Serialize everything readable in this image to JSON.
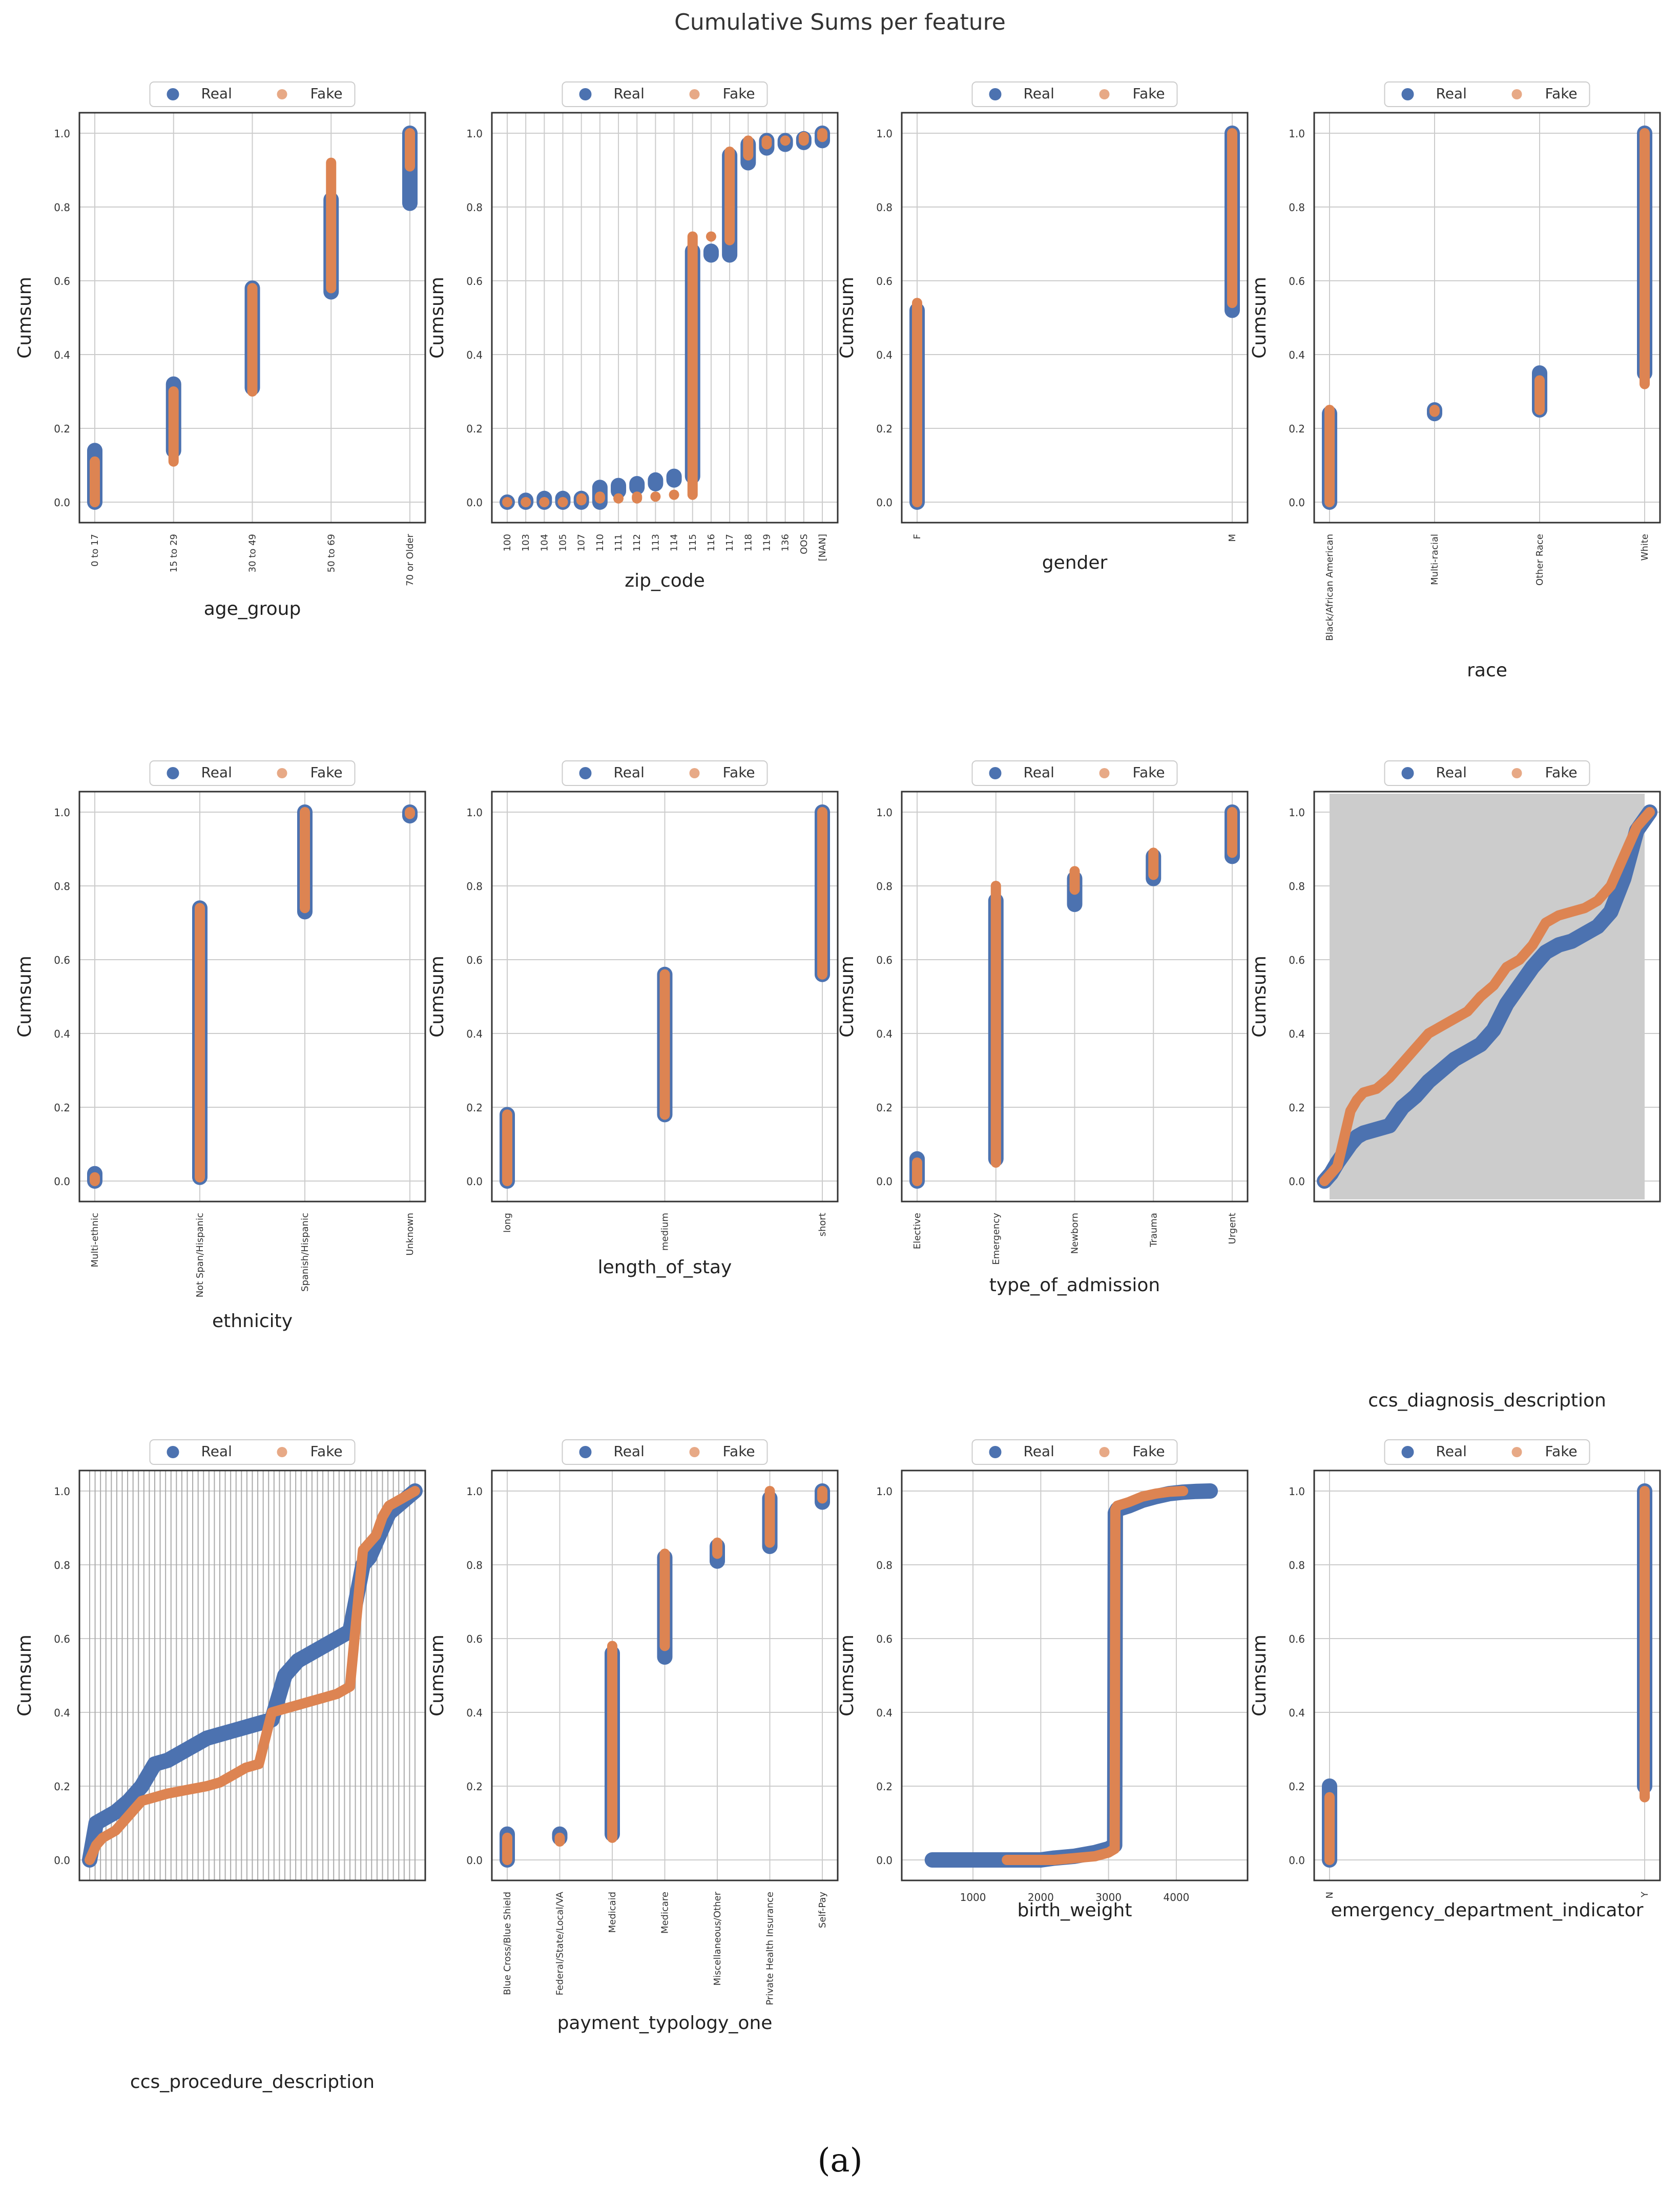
{
  "title": "Cumulative Sums per feature",
  "caption": "(a)",
  "legend_labels": [
    "Real",
    "Fake"
  ],
  "colors": {
    "real": "#4c72b0",
    "fake": "#dd8452",
    "grid": "#cccccc",
    "axis": "#333333",
    "shaded_bg": "#cccccc"
  },
  "chart_data": [
    {
      "type": "scatter",
      "xlabel": "age_group",
      "ylabel": "Cumsum",
      "ylim": [
        0,
        1
      ],
      "yticks": [
        "0.0",
        "0.2",
        "0.4",
        "0.6",
        "0.8",
        "1.0"
      ],
      "grid": true,
      "legend": "top-center",
      "categories": [
        "0 to 17",
        "15 to 29",
        "30 to 49",
        "50 to 69",
        "70 or Older"
      ],
      "series": [
        {
          "name": "Real",
          "ranges": [
            [
              0.0,
              0.14
            ],
            [
              0.14,
              0.32
            ],
            [
              0.31,
              0.58
            ],
            [
              0.57,
              0.82
            ],
            [
              0.81,
              1.0
            ]
          ]
        },
        {
          "name": "Fake",
          "ranges": [
            [
              0.0,
              0.11
            ],
            [
              0.11,
              0.3
            ],
            [
              0.3,
              0.58
            ],
            [
              0.58,
              0.92
            ],
            [
              0.91,
              1.0
            ]
          ]
        }
      ]
    },
    {
      "type": "scatter",
      "xlabel": "zip_code",
      "ylabel": "Cumsum",
      "ylim": [
        0,
        1
      ],
      "yticks": [
        "0.0",
        "0.2",
        "0.4",
        "0.6",
        "0.8",
        "1.0"
      ],
      "grid": true,
      "legend": "top-center",
      "categories": [
        "100",
        "103",
        "104",
        "105",
        "107",
        "110",
        "111",
        "112",
        "113",
        "114",
        "115",
        "116",
        "117",
        "118",
        "119",
        "136",
        "OOS",
        "[NAN]"
      ],
      "series": [
        {
          "name": "Real",
          "ranges": [
            [
              0.0,
              0.0
            ],
            [
              0.0,
              0.005
            ],
            [
              0.0,
              0.01
            ],
            [
              0.0,
              0.01
            ],
            [
              0.0,
              0.01
            ],
            [
              0.0,
              0.04
            ],
            [
              0.03,
              0.045
            ],
            [
              0.04,
              0.05
            ],
            [
              0.05,
              0.06
            ],
            [
              0.06,
              0.07
            ],
            [
              0.07,
              0.68
            ],
            [
              0.67,
              0.68
            ],
            [
              0.67,
              0.94
            ],
            [
              0.92,
              0.97
            ],
            [
              0.96,
              0.98
            ],
            [
              0.97,
              0.98
            ],
            [
              0.975,
              0.985
            ],
            [
              0.98,
              1.0
            ]
          ]
        },
        {
          "name": "Fake",
          "ranges": [
            [
              0.0,
              0.0
            ],
            [
              0.0,
              0.0
            ],
            [
              0.0,
              0.0
            ],
            [
              0.0,
              0.0
            ],
            [
              0.005,
              0.01
            ],
            [
              0.01,
              0.015
            ],
            [
              0.01,
              0.01
            ],
            [
              0.01,
              0.015
            ],
            [
              0.015,
              0.015
            ],
            [
              0.02,
              0.02
            ],
            [
              0.02,
              0.72
            ],
            [
              0.72,
              0.72
            ],
            [
              0.71,
              0.95
            ],
            [
              0.94,
              0.98
            ],
            [
              0.97,
              0.98
            ],
            [
              0.98,
              0.98
            ],
            [
              0.98,
              0.99
            ],
            [
              0.99,
              1.0
            ]
          ]
        }
      ]
    },
    {
      "type": "scatter",
      "xlabel": "gender",
      "ylabel": "Cumsum",
      "ylim": [
        0,
        1
      ],
      "yticks": [
        "0.0",
        "0.2",
        "0.4",
        "0.6",
        "0.8",
        "1.0"
      ],
      "grid": true,
      "legend": "top-center",
      "categories": [
        "F",
        "M"
      ],
      "series": [
        {
          "name": "Real",
          "ranges": [
            [
              0.0,
              0.52
            ],
            [
              0.52,
              1.0
            ]
          ]
        },
        {
          "name": "Fake",
          "ranges": [
            [
              0.0,
              0.54
            ],
            [
              0.54,
              1.0
            ]
          ]
        }
      ]
    },
    {
      "type": "scatter",
      "xlabel": "race",
      "ylabel": "Cumsum",
      "ylim": [
        0,
        1
      ],
      "yticks": [
        "0.0",
        "0.2",
        "0.4",
        "0.6",
        "0.8",
        "1.0"
      ],
      "grid": true,
      "legend": "top-center",
      "categories": [
        "Black/African American",
        "Multi-racial",
        "Other Race",
        "White"
      ],
      "series": [
        {
          "name": "Real",
          "ranges": [
            [
              0.0,
              0.24
            ],
            [
              0.24,
              0.25
            ],
            [
              0.25,
              0.35
            ],
            [
              0.35,
              1.0
            ]
          ]
        },
        {
          "name": "Fake",
          "ranges": [
            [
              0.0,
              0.25
            ],
            [
              0.245,
              0.25
            ],
            [
              0.25,
              0.33
            ],
            [
              0.32,
              1.0
            ]
          ]
        }
      ]
    },
    {
      "type": "scatter",
      "xlabel": "ethnicity",
      "ylabel": "Cumsum",
      "ylim": [
        0,
        1
      ],
      "yticks": [
        "0.0",
        "0.2",
        "0.4",
        "0.6",
        "0.8",
        "1.0"
      ],
      "grid": true,
      "legend": "top-center",
      "categories": [
        "Multi-ethnic",
        "Not Span/Hispanic",
        "Spanish/Hispanic",
        "Unknown"
      ],
      "series": [
        {
          "name": "Real",
          "ranges": [
            [
              0.0,
              0.02
            ],
            [
              0.01,
              0.74
            ],
            [
              0.73,
              1.0
            ],
            [
              0.99,
              1.0
            ]
          ]
        },
        {
          "name": "Fake",
          "ranges": [
            [
              0.0,
              0.01
            ],
            [
              0.01,
              0.74
            ],
            [
              0.74,
              1.0
            ],
            [
              0.995,
              1.0
            ]
          ]
        }
      ]
    },
    {
      "type": "scatter",
      "xlabel": "length_of_stay",
      "ylabel": "Cumsum",
      "ylim": [
        0,
        1
      ],
      "yticks": [
        "0.0",
        "0.2",
        "0.4",
        "0.6",
        "0.8",
        "1.0"
      ],
      "grid": true,
      "legend": "top-center",
      "categories": [
        "long",
        "medium",
        "short"
      ],
      "series": [
        {
          "name": "Real",
          "ranges": [
            [
              0.0,
              0.18
            ],
            [
              0.18,
              0.56
            ],
            [
              0.56,
              1.0
            ]
          ]
        },
        {
          "name": "Fake",
          "ranges": [
            [
              0.0,
              0.18
            ],
            [
              0.18,
              0.56
            ],
            [
              0.56,
              1.0
            ]
          ]
        }
      ]
    },
    {
      "type": "scatter",
      "xlabel": "type_of_admission",
      "ylabel": "Cumsum",
      "ylim": [
        0,
        1
      ],
      "yticks": [
        "0.0",
        "0.2",
        "0.4",
        "0.6",
        "0.8",
        "1.0"
      ],
      "grid": true,
      "legend": "top-center",
      "categories": [
        "Elective",
        "Emergency",
        "Newborn",
        "Trauma",
        "Urgent"
      ],
      "series": [
        {
          "name": "Real",
          "ranges": [
            [
              0.0,
              0.06
            ],
            [
              0.06,
              0.76
            ],
            [
              0.75,
              0.82
            ],
            [
              0.82,
              0.88
            ],
            [
              0.88,
              1.0
            ]
          ]
        },
        {
          "name": "Fake",
          "ranges": [
            [
              0.0,
              0.05
            ],
            [
              0.05,
              0.8
            ],
            [
              0.79,
              0.84
            ],
            [
              0.83,
              0.89
            ],
            [
              0.89,
              1.0
            ]
          ]
        }
      ]
    },
    {
      "type": "line",
      "xlabel": "ccs_diagnosis_description",
      "ylabel": "Cumsum",
      "ylim": [
        0,
        1
      ],
      "yticks": [
        "0.0",
        "0.2",
        "0.4",
        "0.6",
        "0.8",
        "1.0"
      ],
      "grid": true,
      "shaded_background": true,
      "legend": "top-center",
      "x": [
        0,
        2,
        4,
        8,
        10,
        12,
        16,
        20,
        24,
        28,
        32,
        36,
        40,
        44,
        48,
        52,
        56,
        60,
        64,
        68,
        72,
        76,
        80,
        84,
        88,
        92,
        96,
        100
      ],
      "series": [
        {
          "name": "Real",
          "values": [
            0.0,
            0.02,
            0.05,
            0.1,
            0.12,
            0.13,
            0.14,
            0.15,
            0.2,
            0.23,
            0.27,
            0.3,
            0.33,
            0.35,
            0.37,
            0.41,
            0.48,
            0.53,
            0.58,
            0.62,
            0.64,
            0.65,
            0.67,
            0.69,
            0.73,
            0.82,
            0.95,
            1.0
          ]
        },
        {
          "name": "Fake",
          "values": [
            0.0,
            0.02,
            0.04,
            0.19,
            0.22,
            0.24,
            0.25,
            0.28,
            0.32,
            0.36,
            0.4,
            0.42,
            0.44,
            0.46,
            0.5,
            0.53,
            0.58,
            0.6,
            0.64,
            0.7,
            0.72,
            0.73,
            0.74,
            0.76,
            0.8,
            0.88,
            0.96,
            1.0
          ]
        }
      ]
    },
    {
      "type": "line",
      "xlabel": "ccs_procedure_description",
      "ylabel": "Cumsum",
      "ylim": [
        0,
        1
      ],
      "yticks": [
        "0.0",
        "0.2",
        "0.4",
        "0.6",
        "0.8",
        "1.0"
      ],
      "grid": true,
      "dense_vertical_grid": true,
      "legend": "top-center",
      "x": [
        0,
        2,
        4,
        8,
        12,
        16,
        20,
        24,
        30,
        36,
        40,
        44,
        48,
        52,
        56,
        60,
        64,
        68,
        72,
        76,
        80,
        84,
        86,
        88,
        90,
        92,
        96,
        100
      ],
      "series": [
        {
          "name": "Real",
          "values": [
            0.0,
            0.1,
            0.11,
            0.13,
            0.16,
            0.2,
            0.26,
            0.27,
            0.3,
            0.33,
            0.34,
            0.35,
            0.36,
            0.37,
            0.38,
            0.5,
            0.54,
            0.56,
            0.58,
            0.6,
            0.62,
            0.8,
            0.82,
            0.86,
            0.9,
            0.94,
            0.97,
            1.0
          ]
        },
        {
          "name": "Fake",
          "values": [
            0.0,
            0.04,
            0.06,
            0.08,
            0.12,
            0.16,
            0.17,
            0.18,
            0.19,
            0.2,
            0.21,
            0.23,
            0.25,
            0.26,
            0.4,
            0.41,
            0.42,
            0.43,
            0.44,
            0.45,
            0.47,
            0.84,
            0.86,
            0.88,
            0.93,
            0.96,
            0.98,
            1.0
          ]
        }
      ]
    },
    {
      "type": "scatter",
      "xlabel": "payment_typology_one",
      "ylabel": "Cumsum",
      "ylim": [
        0,
        1
      ],
      "yticks": [
        "0.0",
        "0.2",
        "0.4",
        "0.6",
        "0.8",
        "1.0"
      ],
      "grid": true,
      "legend": "top-center",
      "categories": [
        "Blue Cross/Blue Shield",
        "Federal/State/Local/VA",
        "Medicaid",
        "Medicare",
        "Miscellaneous/Other",
        "Private Health Insurance",
        "Self-Pay"
      ],
      "series": [
        {
          "name": "Real",
          "ranges": [
            [
              0.0,
              0.07
            ],
            [
              0.06,
              0.07
            ],
            [
              0.07,
              0.56
            ],
            [
              0.55,
              0.82
            ],
            [
              0.81,
              0.85
            ],
            [
              0.85,
              0.98
            ],
            [
              0.97,
              1.0
            ]
          ]
        },
        {
          "name": "Fake",
          "ranges": [
            [
              0.0,
              0.06
            ],
            [
              0.05,
              0.06
            ],
            [
              0.06,
              0.58
            ],
            [
              0.58,
              0.83
            ],
            [
              0.83,
              0.86
            ],
            [
              0.86,
              1.0
            ],
            [
              0.98,
              1.0
            ]
          ]
        }
      ]
    },
    {
      "type": "line",
      "xlabel": "birth_weight",
      "ylabel": "Cumsum",
      "ylim": [
        0,
        1
      ],
      "xlim": [
        100,
        4900
      ],
      "xticks": [
        "1000",
        "2000",
        "3000",
        "4000"
      ],
      "yticks": [
        "0.0",
        "0.2",
        "0.4",
        "0.6",
        "0.8",
        "1.0"
      ],
      "grid": true,
      "legend": "top-center",
      "x": [
        400,
        900,
        1500,
        1800,
        2000,
        2200,
        2500,
        2800,
        3000,
        3090,
        3100,
        3130,
        3300,
        3500,
        3700,
        3900,
        4100,
        4300,
        4500
      ],
      "series": [
        {
          "name": "Real",
          "values": [
            0.0,
            0.0,
            0.0,
            0.0,
            0.0,
            0.005,
            0.01,
            0.02,
            0.03,
            0.04,
            0.94,
            0.95,
            0.96,
            0.975,
            0.985,
            0.993,
            0.997,
            0.999,
            1.0
          ]
        },
        {
          "name": "Fake",
          "values": [
            null,
            null,
            0.0,
            0.0,
            0.0,
            0.0,
            0.005,
            0.01,
            0.02,
            0.03,
            0.95,
            0.96,
            0.97,
            0.985,
            0.993,
            0.998,
            1.0,
            null,
            null
          ]
        }
      ]
    },
    {
      "type": "scatter",
      "xlabel": "emergency_department_indicator",
      "ylabel": "Cumsum",
      "ylim": [
        0,
        1
      ],
      "yticks": [
        "0.0",
        "0.2",
        "0.4",
        "0.6",
        "0.8",
        "1.0"
      ],
      "grid": true,
      "legend": "top-center",
      "categories": [
        "N",
        "Y"
      ],
      "series": [
        {
          "name": "Real",
          "ranges": [
            [
              0.0,
              0.2
            ],
            [
              0.2,
              1.0
            ]
          ]
        },
        {
          "name": "Fake",
          "ranges": [
            [
              0.0,
              0.17
            ],
            [
              0.17,
              1.0
            ]
          ]
        }
      ]
    }
  ]
}
